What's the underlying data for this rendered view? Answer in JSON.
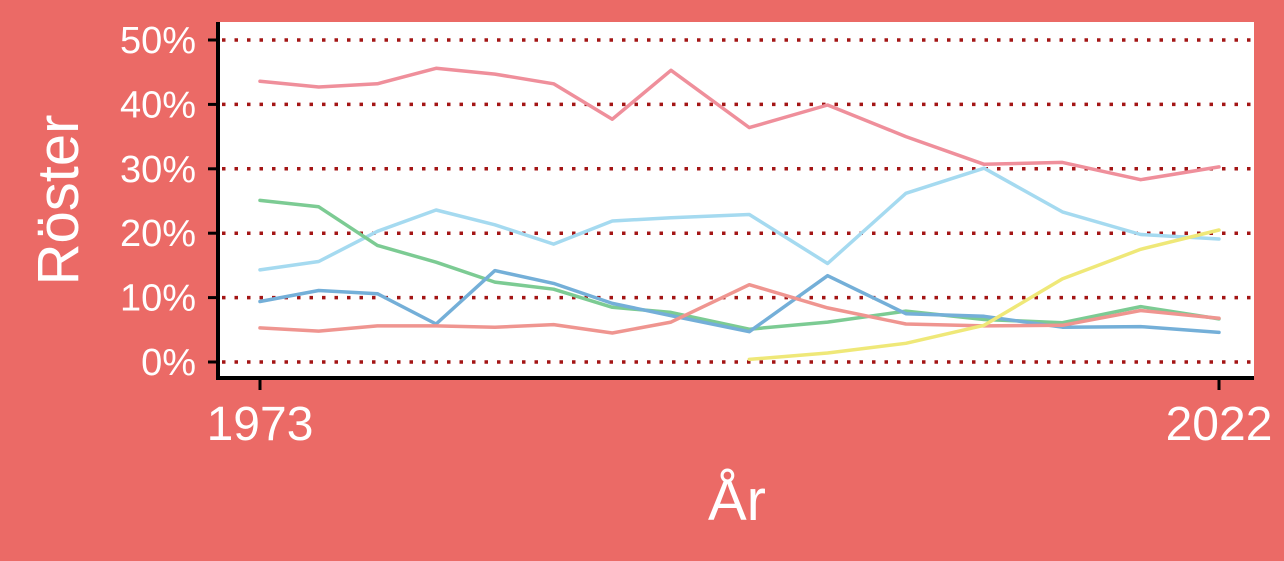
{
  "chart_data": {
    "type": "line",
    "title": "",
    "xlabel": "År",
    "ylabel": "Röster",
    "x_ticks": [
      "1973",
      "2022"
    ],
    "x_range": [
      1973,
      2022
    ],
    "y_ticks": [
      "0%",
      "10%",
      "20%",
      "30%",
      "40%",
      "50%"
    ],
    "ylim": [
      0,
      50
    ],
    "grid": "horizontal dotted",
    "background_color": "#eb6a66",
    "plot_background_color": "#ffffff",
    "grid_color": "#a31515",
    "x": [
      1973,
      1976,
      1979,
      1982,
      1985,
      1988,
      1991,
      1994,
      1998,
      2002,
      2006,
      2010,
      2014,
      2018,
      2022
    ],
    "series": [
      {
        "color": "#ef8f9b",
        "values": [
          43.6,
          42.7,
          43.2,
          45.6,
          44.7,
          43.2,
          37.7,
          45.3,
          36.4,
          39.9,
          35.0,
          30.7,
          31.0,
          28.3,
          30.3
        ]
      },
      {
        "color": "#a5daf0",
        "values": [
          14.3,
          15.6,
          20.3,
          23.6,
          21.3,
          18.3,
          21.9,
          22.4,
          22.9,
          15.3,
          26.2,
          30.1,
          23.3,
          19.8,
          19.1
        ]
      },
      {
        "color": "#7ccb93",
        "values": [
          25.1,
          24.1,
          18.1,
          15.5,
          12.4,
          11.3,
          8.5,
          7.7,
          5.1,
          6.2,
          7.9,
          6.6,
          6.1,
          8.6,
          6.7
        ]
      },
      {
        "color": "#74afd8",
        "values": [
          9.4,
          11.1,
          10.6,
          5.9,
          14.2,
          12.2,
          9.1,
          7.2,
          4.7,
          13.4,
          7.5,
          7.1,
          5.4,
          5.5,
          4.6
        ]
      },
      {
        "color": "#ef9590",
        "values": [
          5.3,
          4.8,
          5.6,
          5.6,
          5.4,
          5.8,
          4.5,
          6.2,
          12.0,
          8.4,
          5.9,
          5.6,
          5.7,
          8.0,
          6.8
        ]
      },
      {
        "color": "#efe878",
        "x": [
          1998,
          2002,
          2006,
          2010,
          2014,
          2018,
          2022
        ],
        "values": [
          0.4,
          1.4,
          2.9,
          5.7,
          12.9,
          17.5,
          20.5
        ]
      }
    ]
  }
}
